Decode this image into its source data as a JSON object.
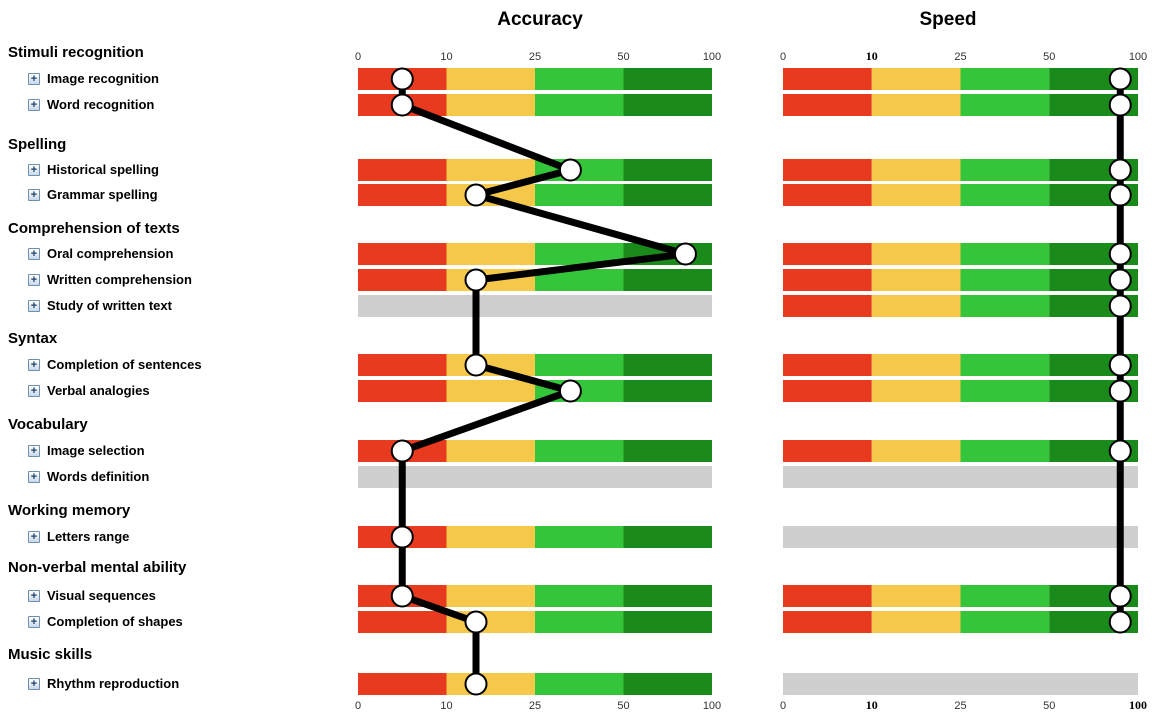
{
  "chart_data": {
    "type": "dot-profile",
    "panels": [
      {
        "key": "accuracy",
        "title": "Accuracy",
        "ticks_top": [
          "0",
          "10",
          "25",
          "50",
          "100"
        ],
        "ticks_bottom": [
          "0",
          "10",
          "25",
          "50",
          "100"
        ],
        "colors": [
          "#e83a1f",
          "#f6c84a",
          "#35c53a",
          "#1a8b1a"
        ]
      },
      {
        "key": "speed",
        "title": "Speed",
        "ticks_top": [
          "0",
          "10",
          "25",
          "50",
          "100"
        ],
        "ticks_bottom": [
          "0",
          "10",
          "25",
          "50",
          "100"
        ],
        "colors": [
          "#e83a1f",
          "#f6c84a",
          "#35c53a",
          "#1a8b1a"
        ]
      }
    ],
    "categories": [
      {
        "label": "Stimuli recognition",
        "items": [
          {
            "label": "Image recognition",
            "accuracy": 5,
            "speed": 90
          },
          {
            "label": "Word recognition",
            "accuracy": 5,
            "speed": 90
          }
        ]
      },
      {
        "label": "Spelling",
        "items": [
          {
            "label": "Historical spelling",
            "accuracy": 35,
            "speed": 90
          },
          {
            "label": "Grammar spelling",
            "accuracy": 15,
            "speed": 90
          }
        ]
      },
      {
        "label": "Comprehension of texts",
        "items": [
          {
            "label": "Oral comprehension",
            "accuracy": 85,
            "speed": 90
          },
          {
            "label": "Written comprehension",
            "accuracy": 15,
            "speed": 90
          },
          {
            "label": "Study of written text",
            "accuracy": null,
            "speed": 90
          }
        ]
      },
      {
        "label": "Syntax",
        "items": [
          {
            "label": "Completion of sentences",
            "accuracy": 15,
            "speed": 90
          },
          {
            "label": "Verbal analogies",
            "accuracy": 35,
            "speed": 90
          }
        ]
      },
      {
        "label": "Vocabulary",
        "items": [
          {
            "label": "Image selection",
            "accuracy": 5,
            "speed": 90
          },
          {
            "label": "Words definition",
            "accuracy": null,
            "speed": null
          }
        ]
      },
      {
        "label": "Working memory",
        "items": [
          {
            "label": "Letters range",
            "accuracy": 5,
            "speed": null
          }
        ]
      },
      {
        "label": "Non-verbal mental ability",
        "items": [
          {
            "label": "Visual sequences",
            "accuracy": 5,
            "speed": 90
          },
          {
            "label": "Completion of shapes",
            "accuracy": 15,
            "speed": 90
          }
        ]
      },
      {
        "label": "Music skills",
        "items": [
          {
            "label": "Rhythm reproduction",
            "accuracy": 15,
            "speed": null
          }
        ]
      }
    ]
  }
}
